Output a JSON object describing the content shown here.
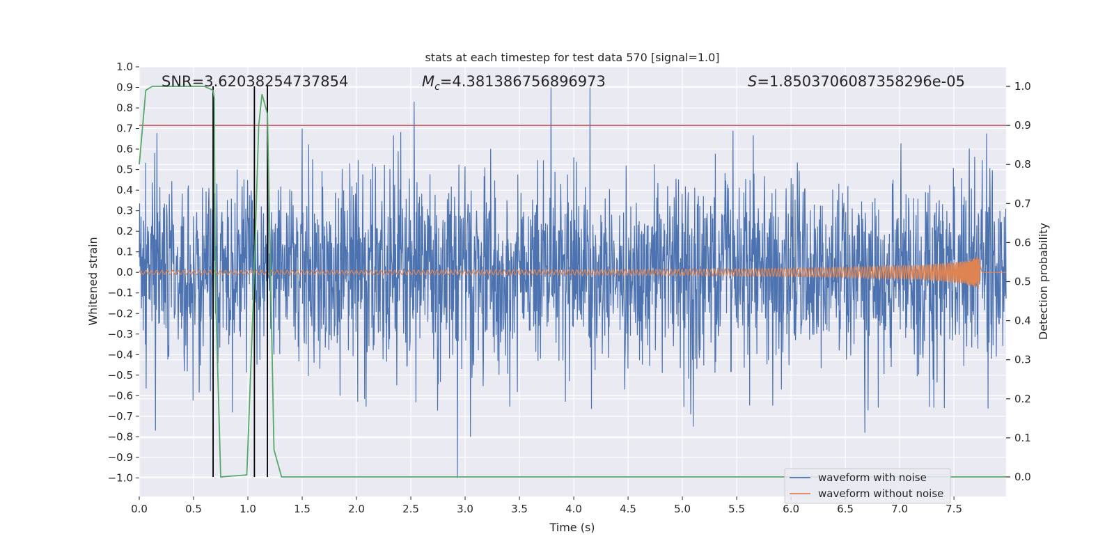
{
  "chart_data": {
    "type": "line",
    "title": "stats at each timestep for test data 570 [signal=1.0]",
    "xlabel": "Time (s)",
    "ylabel_left": "Whitened strain",
    "ylabel_right": "Detection probability",
    "xlim": [
      0.0,
      7.98
    ],
    "ylim_left": [
      -1.09,
      1.0
    ],
    "ylim_right": [
      -0.05,
      1.05
    ],
    "grid": true,
    "legend_position": "bottom-right",
    "x_ticks": [
      "0.0",
      "0.5",
      "1.0",
      "1.5",
      "2.0",
      "2.5",
      "3.0",
      "3.5",
      "4.0",
      "4.5",
      "5.0",
      "5.5",
      "6.0",
      "6.5",
      "7.0",
      "7.5"
    ],
    "y_left_ticks": [
      "1.0",
      "0.9",
      "0.8",
      "0.7",
      "0.6",
      "0.5",
      "0.4",
      "0.3",
      "0.2",
      "0.1",
      "0.0",
      "−0.1",
      "−0.2",
      "−0.3",
      "−0.4",
      "−0.5",
      "−0.6",
      "−0.7",
      "−0.8",
      "−0.9",
      "−1.0"
    ],
    "y_right_ticks": [
      "1.0",
      "0.9",
      "0.8",
      "0.7",
      "0.6",
      "0.5",
      "0.4",
      "0.3",
      "0.2",
      "0.1",
      "0.0"
    ],
    "annotations": {
      "snr": "SNR=3.62038254737854",
      "mc_symbol": "M",
      "mc_sub": "c",
      "mc_value": "=4.381386756896973",
      "s_symbol": "S",
      "s_value": "=1.8503706087358296e-05"
    },
    "series": [
      {
        "name": "waveform with noise",
        "color": "#4c72b0",
        "axis": "left",
        "description": "dense noisy whitened strain, amplitude mostly within ±0.5, peaks near 0.9 and -1.0",
        "typical_upper": 0.5,
        "typical_lower": -0.5,
        "peaks": [
          {
            "x": 2.53,
            "y": 0.83
          },
          {
            "x": 3.79,
            "y": 0.9
          },
          {
            "x": 4.15,
            "y": 0.9
          },
          {
            "x": 2.93,
            "y": -1.0
          },
          {
            "x": 3.05,
            "y": -0.8
          },
          {
            "x": 1.5,
            "y": 0.7
          },
          {
            "x": 0.15,
            "y": -0.77
          },
          {
            "x": 5.1,
            "y": -0.75
          },
          {
            "x": 6.68,
            "y": -0.78
          }
        ]
      },
      {
        "name": "waveform without noise",
        "color": "#dd8452",
        "axis": "left",
        "description": "inspiral chirp growing in amplitude until merger near 7.73 s",
        "envelope": [
          {
            "x": 0.0,
            "a": 0.01
          },
          {
            "x": 2.0,
            "a": 0.01
          },
          {
            "x": 4.0,
            "a": 0.013
          },
          {
            "x": 5.5,
            "a": 0.017
          },
          {
            "x": 6.5,
            "a": 0.025
          },
          {
            "x": 7.2,
            "a": 0.035
          },
          {
            "x": 7.6,
            "a": 0.055
          },
          {
            "x": 7.73,
            "a": 0.08
          },
          {
            "x": 7.76,
            "a": 0.0
          }
        ]
      },
      {
        "name": "detection probability",
        "color": "#55a868",
        "axis": "right",
        "x": [
          0.0,
          0.06,
          0.12,
          0.6,
          0.68,
          0.69,
          0.7,
          0.75,
          0.99,
          1.05,
          1.1,
          1.13,
          1.18,
          1.24,
          1.31,
          7.98
        ],
        "y": [
          0.8,
          0.99,
          1.0,
          1.0,
          0.99,
          0.97,
          0.5,
          0.0,
          0.005,
          0.45,
          0.9,
          0.98,
          0.93,
          0.07,
          0.0,
          0.0
        ]
      }
    ],
    "threshold": {
      "value": 0.9,
      "axis": "right",
      "color": "#c44e52"
    },
    "vertical_markers": [
      0.68,
      1.06,
      1.18
    ]
  }
}
